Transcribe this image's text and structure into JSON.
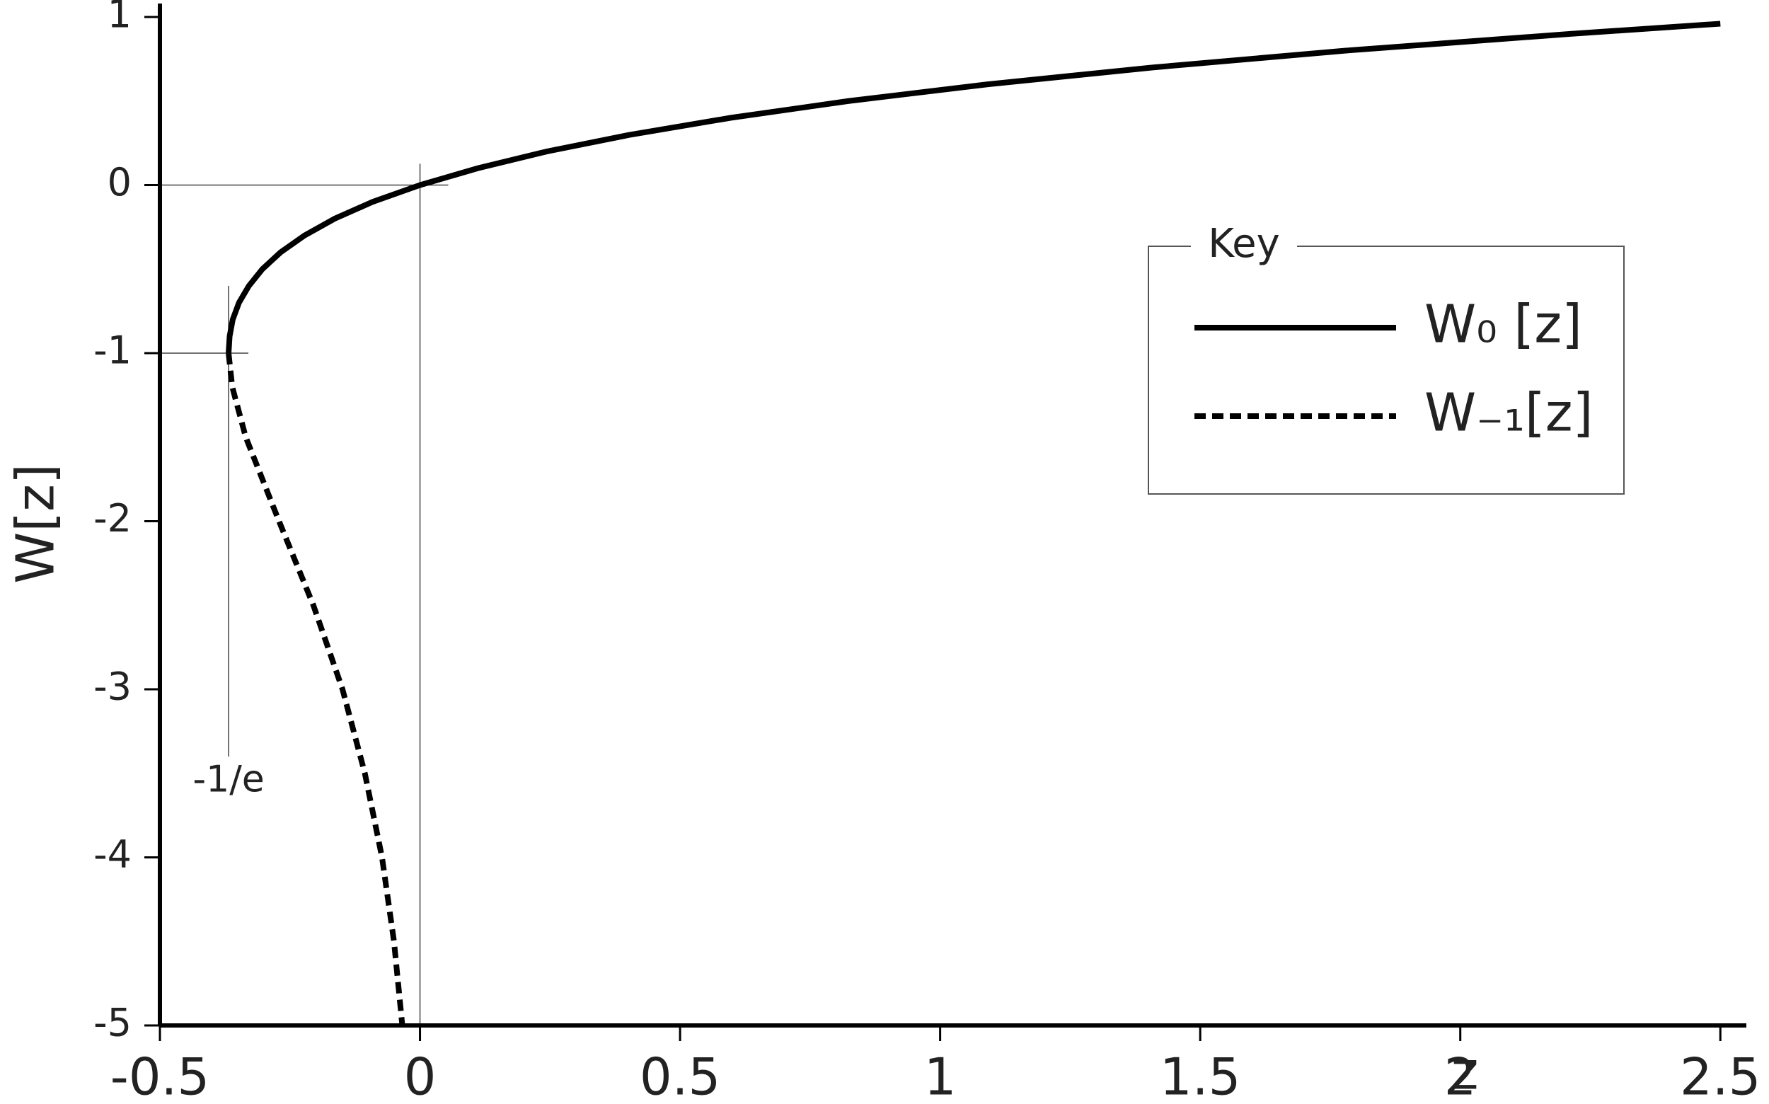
{
  "chart_data": {
    "type": "line",
    "x_label": "z",
    "y_label": "W[z]",
    "xlim": [
      -0.5,
      2.55
    ],
    "ylim": [
      -5,
      1.08
    ],
    "xticks": [
      -0.5,
      0,
      0.5,
      1,
      1.5,
      2,
      2.5
    ],
    "yticks": [
      -5,
      -4,
      -3,
      -2,
      -1,
      0,
      1
    ],
    "annotation": "-1/e",
    "legend_title": "Key",
    "legend": "upper-right",
    "series": [
      {
        "name": "W₀ [z]",
        "color": "#000000",
        "dash": "solid",
        "x": [
          -0.368,
          -0.366,
          -0.36,
          -0.348,
          -0.329,
          -0.303,
          -0.268,
          -0.222,
          -0.164,
          -0.091,
          0,
          0.111,
          0.244,
          0.405,
          0.597,
          0.824,
          1.093,
          1.41,
          1.78,
          2.214,
          2.5
        ],
        "values": [
          -1,
          -0.9,
          -0.8,
          -0.7,
          -0.6,
          -0.5,
          -0.4,
          -0.3,
          -0.2,
          -0.1,
          0,
          0.1,
          0.2,
          0.3,
          0.4,
          0.5,
          0.6,
          0.7,
          0.8,
          0.9,
          0.96
        ]
      },
      {
        "name": "W₋₁[z]",
        "color": "#000000",
        "dash": "dashed",
        "x": [
          -0.368,
          -0.361,
          -0.335,
          -0.271,
          -0.205,
          -0.149,
          -0.106,
          -0.073,
          -0.05,
          -0.034
        ],
        "values": [
          -1,
          -1.2,
          -1.5,
          -2,
          -2.5,
          -3,
          -3.5,
          -4,
          -4.5,
          -5
        ]
      }
    ]
  }
}
